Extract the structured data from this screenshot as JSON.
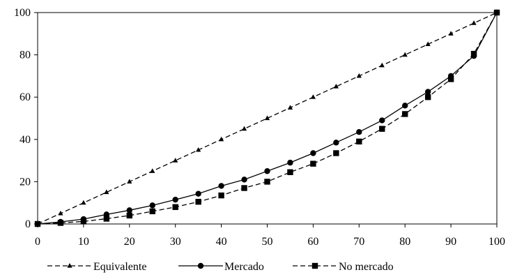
{
  "chart_data": {
    "type": "line",
    "title": "",
    "xlabel": "",
    "ylabel": "",
    "xlim": [
      0,
      100
    ],
    "ylim": [
      0,
      100
    ],
    "x_ticks": [
      0,
      10,
      20,
      30,
      40,
      50,
      60,
      70,
      80,
      90,
      100
    ],
    "y_ticks": [
      0,
      20,
      40,
      60,
      80,
      100
    ],
    "grid": false,
    "legend_position": "bottom",
    "x": [
      0,
      5,
      10,
      15,
      20,
      25,
      30,
      35,
      40,
      45,
      50,
      55,
      60,
      65,
      70,
      75,
      80,
      85,
      90,
      95,
      100
    ],
    "series": [
      {
        "name": "Equivalente",
        "line_style": "dashed",
        "marker": "triangle",
        "color": "#000000",
        "values": [
          0,
          5,
          10,
          15,
          20,
          25,
          30,
          35,
          40,
          45,
          50,
          55,
          60,
          65,
          70,
          75,
          80,
          85,
          90,
          95,
          100
        ]
      },
      {
        "name": "Mercado",
        "line_style": "solid",
        "marker": "circle",
        "color": "#000000",
        "values": [
          0,
          1,
          2.3,
          4.5,
          6.5,
          8.8,
          11.5,
          14.3,
          18,
          21,
          25,
          29,
          33.5,
          38.5,
          43.5,
          49,
          56,
          62.5,
          70,
          79.5,
          100
        ]
      },
      {
        "name": "No mercado",
        "line_style": "dashed",
        "marker": "square",
        "color": "#000000",
        "values": [
          0,
          0.5,
          1.2,
          2.5,
          4,
          6,
          8,
          10.5,
          13.5,
          17,
          20,
          24.5,
          28.5,
          33.5,
          39,
          45,
          52,
          60,
          68.5,
          80.5,
          100
        ]
      }
    ]
  }
}
